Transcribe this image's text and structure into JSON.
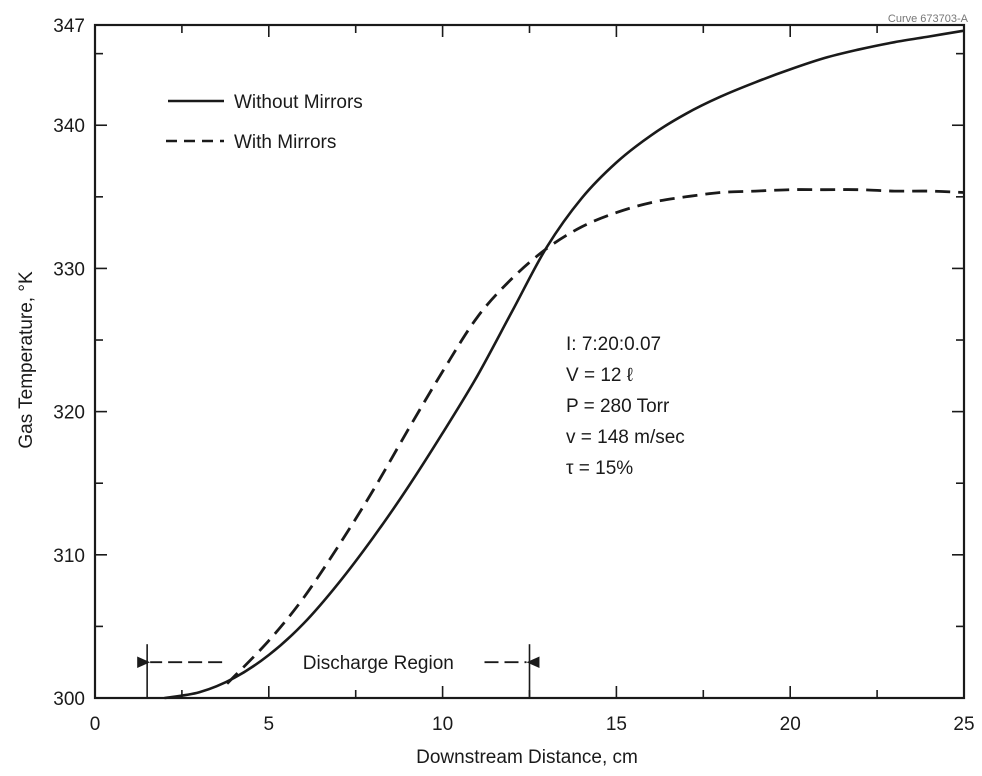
{
  "chart_data": {
    "type": "line",
    "title": "",
    "curve_id": "Curve 673703-A",
    "xlabel": "Downstream Distance, cm",
    "ylabel": "Gas Temperature, °K",
    "xlim": [
      0,
      25
    ],
    "ylim": [
      300,
      347
    ],
    "x_ticks": [
      0,
      5,
      10,
      15,
      20,
      25
    ],
    "y_ticks": [
      300,
      310,
      320,
      330,
      340,
      347
    ],
    "grid": false,
    "legend_position": "top-left",
    "series": [
      {
        "name": "Without Mirrors",
        "style": "solid",
        "points": [
          [
            2.0,
            300.0
          ],
          [
            3.0,
            300.4
          ],
          [
            4.0,
            301.4
          ],
          [
            5.0,
            303.0
          ],
          [
            6.0,
            305.2
          ],
          [
            7.0,
            308.0
          ],
          [
            8.0,
            311.2
          ],
          [
            9.0,
            314.7
          ],
          [
            10.0,
            318.5
          ],
          [
            11.0,
            322.5
          ],
          [
            12.0,
            327.0
          ],
          [
            13.0,
            331.5
          ],
          [
            14.0,
            334.9
          ],
          [
            15.0,
            337.4
          ],
          [
            16.0,
            339.3
          ],
          [
            17.0,
            340.8
          ],
          [
            18.0,
            342.0
          ],
          [
            19.0,
            343.0
          ],
          [
            20.0,
            343.9
          ],
          [
            21.0,
            344.7
          ],
          [
            22.0,
            345.3
          ],
          [
            23.0,
            345.8
          ],
          [
            24.0,
            346.2
          ],
          [
            25.0,
            346.6
          ]
        ]
      },
      {
        "name": "With Mirrors",
        "style": "dashed",
        "points": [
          [
            3.8,
            301.0
          ],
          [
            5.0,
            304.0
          ],
          [
            6.0,
            307.0
          ],
          [
            7.0,
            310.6
          ],
          [
            8.0,
            314.5
          ],
          [
            9.0,
            318.7
          ],
          [
            10.0,
            322.8
          ],
          [
            11.0,
            326.6
          ],
          [
            12.0,
            329.3
          ],
          [
            13.0,
            331.4
          ],
          [
            14.0,
            332.9
          ],
          [
            15.0,
            333.9
          ],
          [
            16.0,
            334.6
          ],
          [
            17.0,
            335.0
          ],
          [
            18.0,
            335.3
          ],
          [
            19.0,
            335.4
          ],
          [
            20.0,
            335.5
          ],
          [
            21.0,
            335.5
          ],
          [
            22.0,
            335.5
          ],
          [
            23.0,
            335.4
          ],
          [
            24.0,
            335.4
          ],
          [
            25.0,
            335.3
          ]
        ]
      }
    ],
    "annotations": {
      "discharge_region": {
        "label": "Discharge Region",
        "x_start": 1.5,
        "x_end": 12.5,
        "y": 302.5
      },
      "conditions": [
        "I: 7:20:0.07",
        "V = 12 ℓ",
        "P = 280 Torr",
        "v = 148 m/sec",
        "τ = 15%"
      ]
    }
  }
}
